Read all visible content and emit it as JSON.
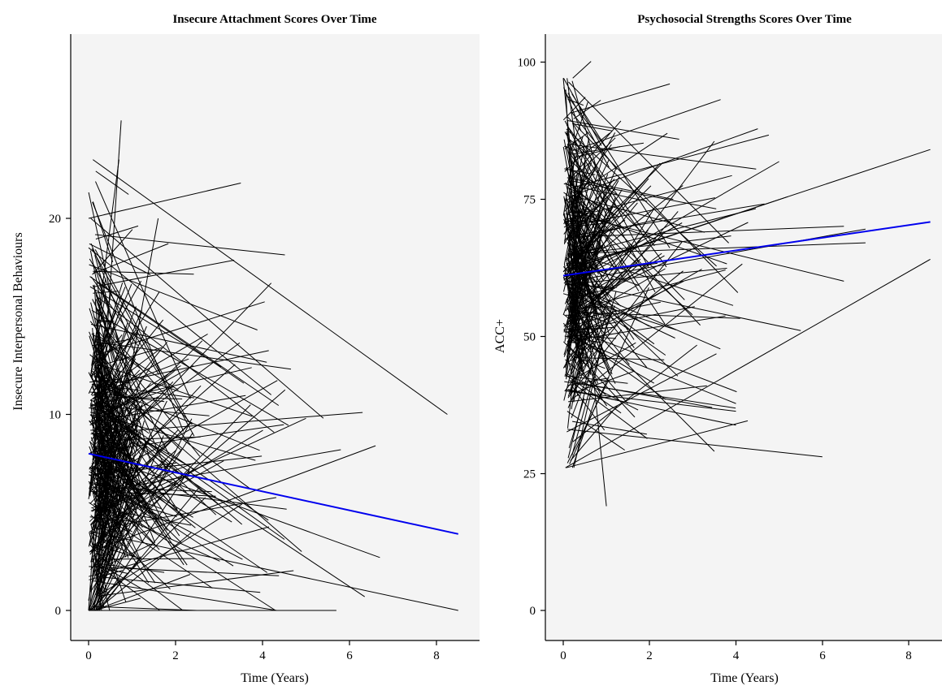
{
  "chart_data": [
    {
      "type": "line",
      "title": "Insecure Attachment Scores Over Time",
      "xlabel": "Time (Years)",
      "ylabel": "Insecure Interpersonal Behaviours",
      "xlim": [
        -0.5,
        9.0
      ],
      "ylim": [
        -1.5,
        29.5
      ],
      "xticks": [
        0,
        2,
        4,
        6,
        8
      ],
      "yticks": [
        0,
        10,
        20
      ],
      "grid": false,
      "series": [
        {
          "kind": "spaghetti",
          "color": "#000000",
          "random_seed": 11,
          "count": 380,
          "start_y_range": [
            0,
            23
          ],
          "start_y_center": 8.5,
          "visible_segments": [
            {
              "x": [
                0.0,
                0.75
              ],
              "y": [
                0.0,
                25.0
              ]
            },
            {
              "x": [
                0.05,
                0.7
              ],
              "y": [
                12.0,
                23.0
              ]
            },
            {
              "x": [
                0.0,
                3.5
              ],
              "y": [
                20.0,
                21.8
              ]
            },
            {
              "x": [
                0.1,
                8.25
              ],
              "y": [
                23.0,
                10.0
              ]
            },
            {
              "x": [
                0.05,
                5.4
              ],
              "y": [
                20.0,
                9.8
              ]
            },
            {
              "x": [
                0.0,
                5.7
              ],
              "y": [
                0.0,
                0.0
              ]
            },
            {
              "x": [
                0.1,
                8.5
              ],
              "y": [
                4.0,
                0.0
              ]
            },
            {
              "x": [
                0.05,
                6.3
              ],
              "y": [
                9.0,
                10.1
              ]
            },
            {
              "x": [
                0.1,
                6.7
              ],
              "y": [
                8.0,
                2.7
              ]
            },
            {
              "x": [
                0.05,
                6.35
              ],
              "y": [
                10.0,
                0.7
              ]
            },
            {
              "x": [
                0.2,
                4.2
              ],
              "y": [
                7.5,
                16.7
              ]
            },
            {
              "x": [
                0.0,
                4.2
              ],
              "y": [
                18.5,
                11.0
              ]
            },
            {
              "x": [
                0.3,
                5.0
              ],
              "y": [
                5.0,
                9.8
              ]
            },
            {
              "x": [
                0.1,
                5.8
              ],
              "y": [
                6.0,
                8.2
              ]
            },
            {
              "x": [
                0.05,
                6.6
              ],
              "y": [
                3.0,
                8.4
              ]
            },
            {
              "x": [
                0.2,
                4.9
              ],
              "y": [
                12.0,
                3.0
              ]
            },
            {
              "x": [
                0.1,
                4.3
              ],
              "y": [
                6.0,
                0.0
              ]
            },
            {
              "x": [
                0.0,
                1.6
              ],
              "y": [
                0.5,
                20.0
              ]
            }
          ]
        },
        {
          "kind": "trend",
          "name": "",
          "color": "#0000ee",
          "x": [
            0.0,
            8.5
          ],
          "y": [
            8.0,
            3.9
          ]
        }
      ]
    },
    {
      "type": "line",
      "title": "Psychosocial Strengths Scores Over Time",
      "xlabel": "Time (Years)",
      "ylabel": "ACC+",
      "xlim": [
        -0.5,
        9.0
      ],
      "ylim": [
        -5.0,
        105.5
      ],
      "xticks": [
        0,
        2,
        4,
        6,
        8
      ],
      "yticks": [
        0,
        25,
        50,
        75,
        100
      ],
      "grid": false,
      "series": [
        {
          "kind": "spaghetti",
          "color": "#000000",
          "random_seed": 23,
          "count": 330,
          "start_y_range": [
            26,
            97
          ],
          "start_y_center": 62,
          "visible_segments": [
            {
              "x": [
                0.0,
                1.0
              ],
              "y": [
                97.0,
                19.0
              ]
            },
            {
              "x": [
                0.05,
                8.5
              ],
              "y": [
                26.0,
                64.0
              ]
            },
            {
              "x": [
                0.1,
                6.0
              ],
              "y": [
                33.0,
                28.0
              ]
            },
            {
              "x": [
                0.05,
                8.5
              ],
              "y": [
                62.0,
                84.0
              ]
            },
            {
              "x": [
                0.1,
                6.5
              ],
              "y": [
                68.0,
                70.0
              ]
            },
            {
              "x": [
                0.2,
                7.0
              ],
              "y": [
                60.0,
                69.5
              ]
            },
            {
              "x": [
                0.1,
                7.0
              ],
              "y": [
                65.0,
                67.0
              ]
            },
            {
              "x": [
                0.3,
                6.5
              ],
              "y": [
                72.0,
                60.0
              ]
            },
            {
              "x": [
                0.1,
                5.5
              ],
              "y": [
                60.0,
                51.0
              ]
            },
            {
              "x": [
                0.2,
                3.5
              ],
              "y": [
                55.0,
                29.0
              ]
            },
            {
              "x": [
                0.1,
                4.0
              ],
              "y": [
                50.0,
                37.7
              ]
            },
            {
              "x": [
                0.3,
                3.5
              ],
              "y": [
                52.0,
                85.5
              ]
            },
            {
              "x": [
                0.2,
                5.0
              ],
              "y": [
                60.0,
                81.8
              ]
            },
            {
              "x": [
                0.1,
                5.2
              ],
              "y": [
                62.0,
                75.4
              ]
            },
            {
              "x": [
                0.05,
                4.0
              ],
              "y": [
                40.0,
                36.3
              ]
            }
          ]
        },
        {
          "kind": "trend",
          "name": "",
          "color": "#0000ee",
          "x": [
            0.0,
            8.5
          ],
          "y": [
            61.0,
            70.8
          ]
        }
      ]
    }
  ]
}
